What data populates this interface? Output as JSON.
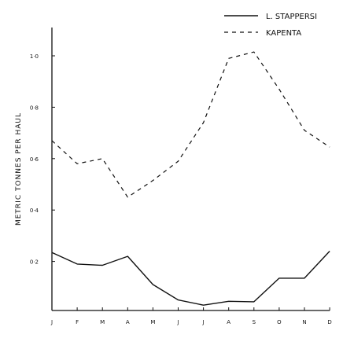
{
  "chart_data": {
    "type": "line",
    "title": "",
    "xlabel": "",
    "ylabel": "METRIC   TONNES   PER   HAUL",
    "categories": [
      "J",
      "F",
      "M",
      "A",
      "M",
      "J",
      "J",
      "A",
      "S",
      "O",
      "N",
      "D"
    ],
    "yticks": [
      {
        "value": 0.2,
        "label": "0·2"
      },
      {
        "value": 0.4,
        "label": "0·4"
      },
      {
        "value": 0.6,
        "label": "0·6"
      },
      {
        "value": 0.8,
        "label": "0·8"
      },
      {
        "value": 1.0,
        "label": "1·0"
      }
    ],
    "ylim": [
      0,
      1.1
    ],
    "grid": false,
    "legend_position": "top-right",
    "series": [
      {
        "name": "L. STAPPERSI",
        "style": "solid",
        "color": "#111111",
        "values": [
          0.235,
          0.19,
          0.185,
          0.22,
          0.11,
          0.05,
          0.03,
          0.045,
          0.043,
          0.135,
          0.135,
          0.24
        ]
      },
      {
        "name": "KAPENTA",
        "style": "dashed",
        "color": "#111111",
        "values": [
          0.67,
          0.58,
          0.6,
          0.45,
          0.515,
          0.59,
          0.74,
          0.99,
          1.015,
          0.87,
          0.71,
          0.645
        ]
      }
    ]
  }
}
